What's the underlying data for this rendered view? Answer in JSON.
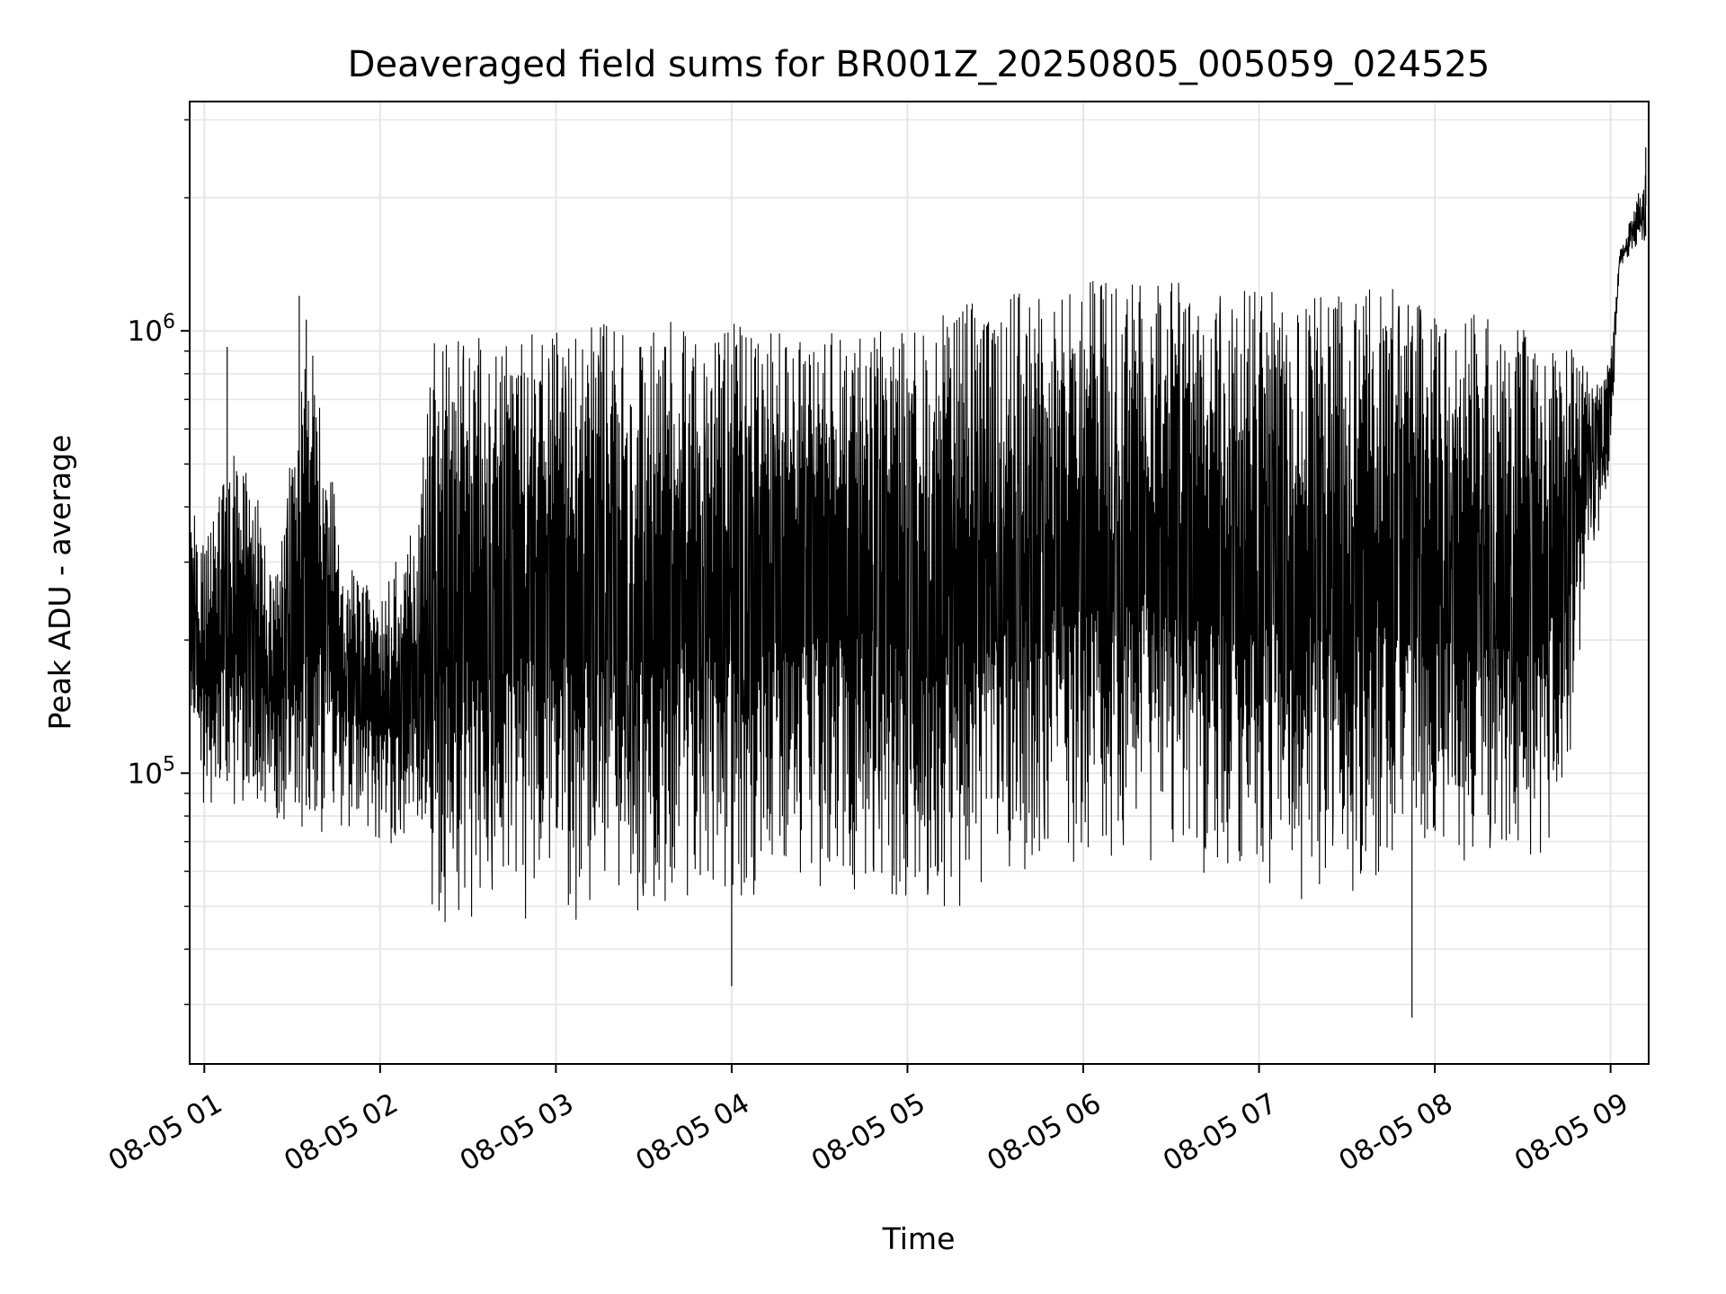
{
  "chart_data": {
    "type": "line",
    "title": "Deaveraged field sums for BR001Z_20250805_005059_024525",
    "xlabel": "Time",
    "ylabel": "Peak ADU - average",
    "y_scale": "log",
    "ylim": [
      22000,
      3300000
    ],
    "xlim": [
      "08-05 00:55",
      "08-05 09:13"
    ],
    "grid": true,
    "legend": "none",
    "line_color": "#000000",
    "x_tick_labels": [
      "08-05 01",
      "08-05 02",
      "08-05 03",
      "08-05 04",
      "08-05 05",
      "08-05 06",
      "08-05 07",
      "08-05 08",
      "08-05 09"
    ],
    "x_tick_hours": [
      1,
      2,
      3,
      4,
      5,
      6,
      7,
      8,
      9
    ],
    "y_ticks": [
      {
        "value": 100000,
        "base": "10",
        "exp": "5"
      },
      {
        "value": 1000000,
        "base": "10",
        "exp": "6"
      }
    ],
    "envelope": {
      "description_units": "x = hours on 2025-08-05, y = Peak ADU - average",
      "x": [
        0.92,
        1.0,
        1.2,
        1.4,
        1.6,
        1.8,
        2.0,
        2.2,
        2.28,
        2.3,
        2.5,
        2.8,
        3.0,
        3.3,
        3.6,
        3.9,
        4.0,
        4.25,
        4.5,
        4.8,
        5.0,
        5.3,
        5.5,
        5.8,
        6.0,
        6.2,
        6.5,
        6.8,
        7.0,
        7.2,
        7.5,
        7.8,
        8.0,
        8.2,
        8.4,
        8.6,
        8.75,
        8.9,
        9.0,
        9.05,
        9.15,
        9.2
      ],
      "upper": [
        420000,
        330000,
        600000,
        300000,
        1000000,
        300000,
        250000,
        400000,
        800000,
        950000,
        970000,
        1000000,
        1000000,
        1050000,
        1050000,
        1050000,
        1050000,
        1000000,
        1000000,
        1050000,
        1050000,
        1150000,
        1200000,
        1250000,
        1300000,
        1300000,
        1300000,
        1250000,
        1250000,
        1250000,
        1250000,
        1250000,
        1150000,
        1100000,
        1050000,
        1000000,
        950000,
        800000,
        850000,
        1500000,
        2000000,
        2300000
      ],
      "lower": [
        120000,
        80000,
        80000,
        75000,
        70000,
        75000,
        70000,
        65000,
        60000,
        45000,
        45000,
        45000,
        45000,
        45000,
        47000,
        48000,
        50000,
        55000,
        55000,
        52000,
        48000,
        48000,
        55000,
        62000,
        60000,
        60000,
        60000,
        58000,
        55000,
        50000,
        50000,
        52000,
        55000,
        55000,
        55000,
        55000,
        90000,
        300000,
        450000,
        1400000,
        1500000,
        1600000
      ]
    },
    "notable_points": [
      {
        "x": 1.13,
        "y": 920000
      },
      {
        "x": 1.54,
        "y": 1200000
      },
      {
        "x": 1.58,
        "y": 1060000
      },
      {
        "x": 7.87,
        "y": 28000
      },
      {
        "x": 4.0,
        "y": 33000
      },
      {
        "x": 9.2,
        "y": 2600000
      }
    ]
  }
}
